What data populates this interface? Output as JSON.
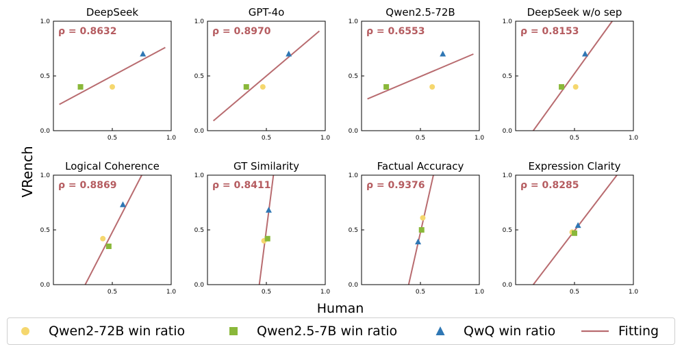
{
  "chart_data": {
    "type": "scatter",
    "suptitle": "",
    "xlabel": "Human",
    "ylabel": "VRench",
    "xlim": [
      0.0,
      1.0
    ],
    "ylim": [
      0.0,
      1.0
    ],
    "ticks": [
      "0.0",
      "0.5",
      "1.0"
    ],
    "colors": {
      "qwen2_72b": "#f5d76e",
      "qwen25_7b": "#8ab83a",
      "qwq": "#2f77b4",
      "fit": "#b86b6f",
      "rho": "#b55c60"
    },
    "legend": [
      {
        "key": "qwen2_72b",
        "label": "Qwen2-72B win ratio",
        "marker": "circle"
      },
      {
        "key": "qwen25_7b",
        "label": "Qwen2.5-7B win ratio",
        "marker": "square"
      },
      {
        "key": "qwq",
        "label": "QwQ win ratio",
        "marker": "triangle"
      },
      {
        "key": "fit",
        "label": "Fitting",
        "marker": "line"
      }
    ],
    "panels": [
      {
        "title": "DeepSeek",
        "rho": "ρ = 0.8632",
        "points": {
          "qwen2_72b": [
            0.5,
            0.4
          ],
          "qwen25_7b": [
            0.23,
            0.4
          ],
          "qwq": [
            0.76,
            0.7
          ]
        },
        "fit": [
          [
            0.05,
            0.24
          ],
          [
            0.95,
            0.76
          ]
        ]
      },
      {
        "title": "GPT-4o",
        "rho": "ρ = 0.8970",
        "points": {
          "qwen2_72b": [
            0.47,
            0.4
          ],
          "qwen25_7b": [
            0.33,
            0.4
          ],
          "qwq": [
            0.69,
            0.7
          ]
        },
        "fit": [
          [
            0.05,
            0.09
          ],
          [
            0.95,
            0.91
          ]
        ]
      },
      {
        "title": "Qwen2.5-72B",
        "rho": "ρ = 0.6553",
        "points": {
          "qwen2_72b": [
            0.6,
            0.4
          ],
          "qwen25_7b": [
            0.21,
            0.4
          ],
          "qwq": [
            0.69,
            0.7
          ]
        },
        "fit": [
          [
            0.05,
            0.29
          ],
          [
            0.95,
            0.7
          ]
        ]
      },
      {
        "title": "DeepSeek w/o sep",
        "rho": "ρ = 0.8153",
        "points": {
          "qwen2_72b": [
            0.51,
            0.4
          ],
          "qwen25_7b": [
            0.39,
            0.4
          ],
          "qwq": [
            0.59,
            0.7
          ]
        },
        "fit": [
          [
            0.15,
            0.0
          ],
          [
            0.82,
            1.0
          ]
        ]
      },
      {
        "title": "Logical Coherence",
        "rho": "ρ = 0.8869",
        "points": {
          "qwen2_72b": [
            0.42,
            0.42
          ],
          "qwen25_7b": [
            0.47,
            0.35
          ],
          "qwq": [
            0.59,
            0.73
          ]
        },
        "fit": [
          [
            0.27,
            0.0
          ],
          [
            0.75,
            1.0
          ]
        ]
      },
      {
        "title": "GT Similarity",
        "rho": "ρ = 0.8411",
        "points": {
          "qwen2_72b": [
            0.48,
            0.4
          ],
          "qwen25_7b": [
            0.51,
            0.42
          ],
          "qwq": [
            0.52,
            0.68
          ]
        },
        "fit": [
          [
            0.44,
            0.0
          ],
          [
            0.56,
            1.0
          ]
        ]
      },
      {
        "title": "Factual Accuracy",
        "rho": "ρ = 0.9376",
        "points": {
          "qwen2_72b": [
            0.52,
            0.61
          ],
          "qwen25_7b": [
            0.51,
            0.5
          ],
          "qwq": [
            0.48,
            0.39
          ]
        },
        "fit": [
          [
            0.4,
            0.0
          ],
          [
            0.61,
            1.0
          ]
        ]
      },
      {
        "title": "Expression Clarity",
        "rho": "ρ = 0.8285",
        "points": {
          "qwen2_72b": [
            0.48,
            0.48
          ],
          "qwen25_7b": [
            0.5,
            0.47
          ],
          "qwq": [
            0.53,
            0.54
          ]
        },
        "fit": [
          [
            0.15,
            0.0
          ],
          [
            0.86,
            1.0
          ]
        ]
      }
    ]
  }
}
